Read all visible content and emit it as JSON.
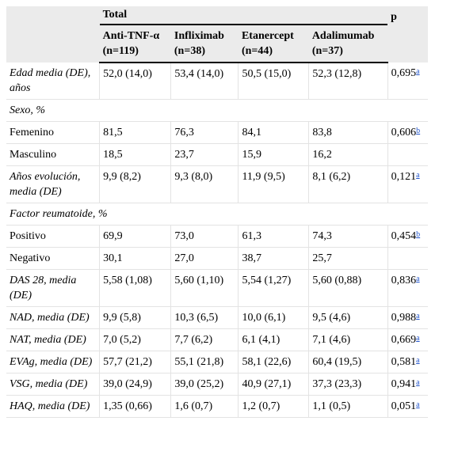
{
  "header": {
    "total": "Total",
    "p": "p",
    "columns": [
      {
        "name": "Anti-TNF-α",
        "n": "(n=119)"
      },
      {
        "name": "Infliximab",
        "n": "(n=38)"
      },
      {
        "name": "Etanercept",
        "n": "(n=44)"
      },
      {
        "name": "Adalimumab",
        "n": "(n=37)"
      }
    ]
  },
  "rows": [
    {
      "label": "Edad media (DE), años",
      "italic": true,
      "values": [
        "52,0 (14,0)",
        "53,4 (14,0)",
        "50,5 (15,0)",
        "52,3 (12,8)"
      ],
      "p": "0,695",
      "note": "a"
    },
    {
      "label": "Sexo, %",
      "italic": true,
      "group": true
    },
    {
      "label": "Femenino",
      "italic": false,
      "values": [
        "81,5",
        "76,3",
        "84,1",
        "83,8"
      ],
      "p": "0,606",
      "note": "b"
    },
    {
      "label": "Masculino",
      "italic": false,
      "values": [
        "18,5",
        "23,7",
        "15,9",
        "16,2"
      ],
      "p": "",
      "note": ""
    },
    {
      "label": "Años evolución, media (DE)",
      "italic": true,
      "values": [
        "9,9 (8,2)",
        "9,3 (8,0)",
        "11,9 (9,5)",
        "8,1 (6,2)"
      ],
      "p": "0,121",
      "note": "a"
    },
    {
      "label": "Factor reumatoide, %",
      "italic": true,
      "group": true
    },
    {
      "label": "Positivo",
      "italic": false,
      "values": [
        "69,9",
        "73,0",
        "61,3",
        "74,3"
      ],
      "p": "0,454",
      "note": "b"
    },
    {
      "label": "Negativo",
      "italic": false,
      "values": [
        "30,1",
        "27,0",
        "38,7",
        "25,7"
      ],
      "p": "",
      "note": ""
    },
    {
      "label": "DAS 28, media (DE)",
      "italic": true,
      "values": [
        "5,58 (1,08)",
        "5,60 (1,10)",
        "5,54 (1,27)",
        "5,60 (0,88)"
      ],
      "p": "0,836",
      "note": "a"
    },
    {
      "label": "NAD, media (DE)",
      "italic": true,
      "values": [
        "9,9 (5,8)",
        "10,3 (6,5)",
        "10,0 (6,1)",
        "9,5 (4,6)"
      ],
      "p": "0,988",
      "note": "a"
    },
    {
      "label": "NAT, media (DE)",
      "italic": true,
      "values": [
        "7,0 (5,2)",
        "7,7 (6,2)",
        "6,1 (4,1)",
        "7,1 (4,6)"
      ],
      "p": "0,669",
      "note": "a"
    },
    {
      "label": "EVAg, media (DE)",
      "italic": true,
      "values": [
        "57,7 (21,2)",
        "55,1 (21,8)",
        "58,1 (22,6)",
        "60,4 (19,5)"
      ],
      "p": "0,581",
      "note": "a"
    },
    {
      "label": "VSG, media (DE)",
      "italic": true,
      "values": [
        "39,0 (24,9)",
        "39,0 (25,2)",
        "40,9 (27,1)",
        "37,3 (23,3)"
      ],
      "p": "0,941",
      "note": "a"
    },
    {
      "label": "HAQ, media (DE)",
      "italic": true,
      "values": [
        "1,35 (0,66)",
        "1,6 (0,7)",
        "1,2 (0,7)",
        "1,1 (0,5)"
      ],
      "p": "0,051",
      "note": "a"
    }
  ]
}
